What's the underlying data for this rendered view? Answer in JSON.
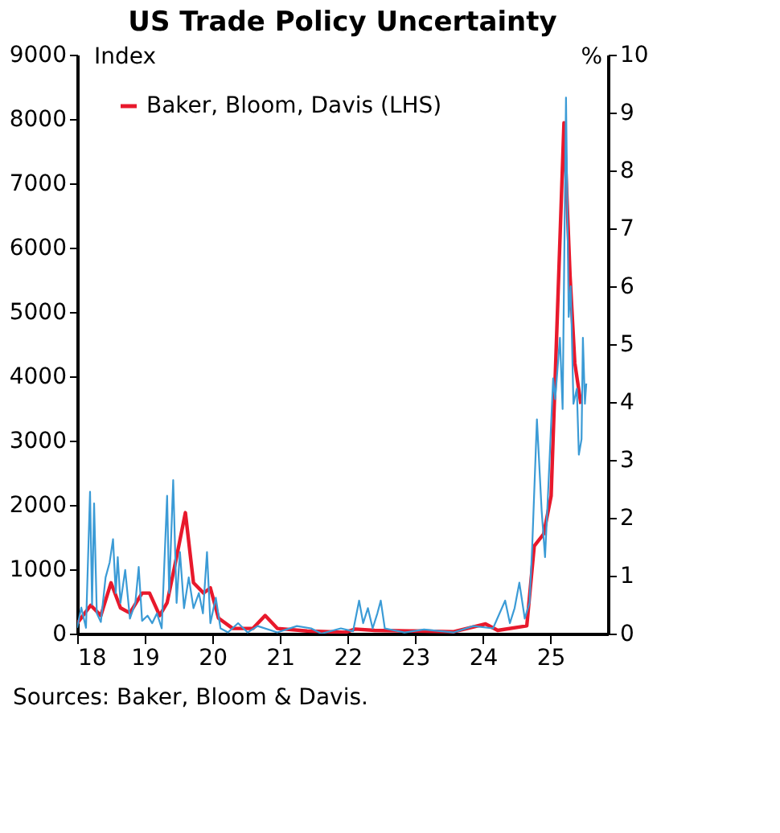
{
  "chart_data": {
    "type": "line",
    "title": "US Trade Policy Uncertainty",
    "ylabel": "Index",
    "y2label": "%",
    "xlim": [
      18,
      25.85
    ],
    "xticks": [
      18,
      19,
      20,
      21,
      22,
      23,
      24,
      25
    ],
    "ylim": [
      0,
      9000
    ],
    "yticks": [
      0,
      1000,
      2000,
      3000,
      4000,
      5000,
      6000,
      7000,
      8000,
      9000
    ],
    "y2lim": [
      0,
      10
    ],
    "y2ticks": [
      0,
      1,
      2,
      3,
      4,
      5,
      6,
      7,
      8,
      9,
      10
    ],
    "legend": "top left",
    "grid": false,
    "marker": "none",
    "line_style": "solid",
    "annotations": [
      "Sources: Baker, Bloom & Davis."
    ],
    "series": [
      {
        "name": "Baker, Bloom, Davis (LHS)",
        "color": "#e8192c",
        "x": [
          18.0,
          18.2,
          18.35,
          18.5,
          18.64,
          18.78,
          18.96,
          19.07,
          19.22,
          19.33,
          19.47,
          19.6,
          19.72,
          19.87,
          19.97,
          20.09,
          20.3,
          20.6,
          20.78,
          20.96,
          21.4,
          21.97,
          22.11,
          22.4,
          22.99,
          23.57,
          24.04,
          24.22,
          24.65,
          24.76,
          24.9,
          25.01,
          25.2,
          25.29,
          25.36,
          25.45
        ],
        "values": [
          160,
          440,
          280,
          790,
          400,
          320,
          630,
          630,
          280,
          480,
          1190,
          1880,
          790,
          630,
          710,
          240,
          80,
          80,
          280,
          80,
          40,
          20,
          70,
          50,
          40,
          30,
          150,
          50,
          120,
          1360,
          1550,
          2140,
          7940,
          5560,
          4210,
          3570
        ]
      },
      {
        "color": "#3b9bd6",
        "axis": "y2",
        "x": [
          18.0,
          18.06,
          18.13,
          18.19,
          18.22,
          18.25,
          18.29,
          18.35,
          18.42,
          18.48,
          18.53,
          18.57,
          18.6,
          18.64,
          18.71,
          18.78,
          18.86,
          18.91,
          18.96,
          19.04,
          19.11,
          19.18,
          19.25,
          19.33,
          19.36,
          19.42,
          19.47,
          19.52,
          19.58,
          19.65,
          19.72,
          19.8,
          19.86,
          19.92,
          19.97,
          20.05,
          20.12,
          20.23,
          20.38,
          20.52,
          20.67,
          20.96,
          21.25,
          21.46,
          21.61,
          21.9,
          22.08,
          22.17,
          22.23,
          22.3,
          22.37,
          22.44,
          22.49,
          22.55,
          22.84,
          23.13,
          23.57,
          23.86,
          24.15,
          24.33,
          24.4,
          24.47,
          24.54,
          24.62,
          24.69,
          24.73,
          24.8,
          24.87,
          24.92,
          24.97,
          25.04,
          25.07,
          25.14,
          25.18,
          25.23,
          25.27,
          25.3,
          25.34,
          25.39,
          25.42,
          25.46,
          25.48,
          25.51,
          25.53
        ],
        "values": [
          0.1,
          0.45,
          0.1,
          2.45,
          0.5,
          2.25,
          0.35,
          0.2,
          0.97,
          1.23,
          1.63,
          0.7,
          1.32,
          0.53,
          1.1,
          0.26,
          0.53,
          1.15,
          0.22,
          0.31,
          0.18,
          0.35,
          0.09,
          2.38,
          0.7,
          2.65,
          0.53,
          1.41,
          0.44,
          0.97,
          0.44,
          0.7,
          0.35,
          1.41,
          0.18,
          0.62,
          0.09,
          0.02,
          0.18,
          0.02,
          0.13,
          0.02,
          0.13,
          0.09,
          0.0,
          0.09,
          0.04,
          0.57,
          0.18,
          0.44,
          0.09,
          0.35,
          0.57,
          0.09,
          0.02,
          0.07,
          0.02,
          0.13,
          0.09,
          0.57,
          0.18,
          0.44,
          0.88,
          0.26,
          0.53,
          1.5,
          3.7,
          2.12,
          1.32,
          2.56,
          4.41,
          4.05,
          5.11,
          3.88,
          9.26,
          5.47,
          6.0,
          3.97,
          4.23,
          3.09,
          3.36,
          5.11,
          3.97,
          4.32
        ]
      }
    ]
  }
}
